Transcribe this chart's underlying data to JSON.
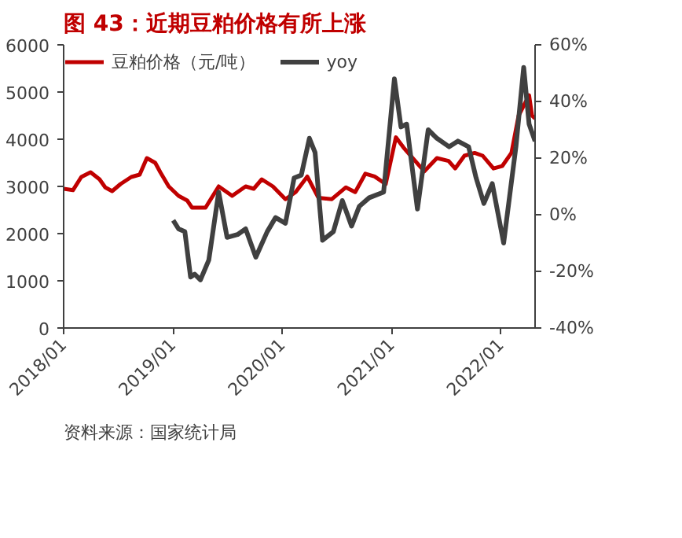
{
  "chart_data": {
    "type": "line",
    "title": "图 43：近期豆粕价格有所上涨",
    "annotations": [
      "资料来源：国家统计局"
    ],
    "xlim": [
      "2018-01-01",
      "2022-04-25"
    ],
    "xticks": [
      {
        "value": "2018-01-01",
        "label": "2018/01"
      },
      {
        "value": "2019-01-01",
        "label": "2019/01"
      },
      {
        "value": "2020-01-01",
        "label": "2020/01"
      },
      {
        "value": "2021-01-01",
        "label": "2021/01"
      },
      {
        "value": "2022-01-01",
        "label": "2022/01"
      }
    ],
    "ylim": [
      0,
      6000
    ],
    "yticks": [
      0,
      1000,
      2000,
      3000,
      4000,
      5000,
      6000
    ],
    "y2lim": [
      -40,
      60
    ],
    "y2ticks": [
      {
        "value": -40,
        "label": "-40%"
      },
      {
        "value": -20,
        "label": "-20%"
      },
      {
        "value": 0,
        "label": "0%"
      },
      {
        "value": 20,
        "label": "20%"
      },
      {
        "value": 40,
        "label": "40%"
      },
      {
        "value": 60,
        "label": "60%"
      }
    ],
    "grid": false,
    "legend": "top",
    "marker": "none",
    "line_style": "solid",
    "series": [
      {
        "name": "豆粕价格（元/吨）",
        "color": "#c00000",
        "x": [
          "2018-01-01",
          "2018-02-01",
          "2018-03-01",
          "2018-04-01",
          "2018-05-01",
          "2018-05-20",
          "2018-06-12",
          "2018-07-10",
          "2018-08-15",
          "2018-09-12",
          "2018-10-06",
          "2018-11-03",
          "2018-11-20",
          "2018-12-18",
          "2019-01-20",
          "2019-02-18",
          "2019-03-06",
          "2019-04-20",
          "2019-06-03",
          "2019-07-18",
          "2019-09-01",
          "2019-09-28",
          "2019-10-25",
          "2019-12-01",
          "2020-01-12",
          "2020-02-15",
          "2020-03-25",
          "2020-05-01",
          "2020-06-15",
          "2020-08-01",
          "2020-09-01",
          "2020-10-05",
          "2020-11-05",
          "2020-12-12",
          "2021-01-15",
          "2021-02-10",
          "2021-04-20",
          "2021-06-01",
          "2021-07-10",
          "2021-08-01",
          "2021-09-01",
          "2021-10-05",
          "2021-11-01",
          "2021-12-07",
          "2022-01-05",
          "2022-02-05",
          "2022-03-01",
          "2022-04-05",
          "2022-04-15",
          "2022-04-25"
        ],
        "values": [
          2950,
          2920,
          3200,
          3300,
          3150,
          2980,
          2900,
          3050,
          3200,
          3250,
          3600,
          3500,
          3300,
          3000,
          2800,
          2700,
          2550,
          2550,
          3000,
          2800,
          3000,
          2950,
          3150,
          3000,
          2730,
          2880,
          3210,
          2760,
          2730,
          2980,
          2880,
          3270,
          3210,
          3050,
          4040,
          3820,
          3320,
          3600,
          3540,
          3380,
          3650,
          3710,
          3650,
          3380,
          3430,
          3710,
          4500,
          4930,
          4500,
          4440
        ]
      },
      {
        "name": "yoy",
        "color": "#404040",
        "axis": "y2",
        "x": [
          "2019-01-02",
          "2019-01-20",
          "2019-02-10",
          "2019-03-01",
          "2019-03-15",
          "2019-04-03",
          "2019-05-01",
          "2019-06-03",
          "2019-07-01",
          "2019-08-05",
          "2019-09-01",
          "2019-10-05",
          "2019-11-12",
          "2019-12-10",
          "2020-01-12",
          "2020-02-10",
          "2020-03-05",
          "2020-04-01",
          "2020-04-20",
          "2020-05-15",
          "2020-06-20",
          "2020-07-20",
          "2020-08-20",
          "2020-09-15",
          "2020-10-18",
          "2020-12-05",
          "2021-01-10",
          "2021-02-01",
          "2021-02-20",
          "2021-03-28",
          "2021-05-03",
          "2021-06-01",
          "2021-07-12",
          "2021-08-10",
          "2021-09-15",
          "2021-10-10",
          "2021-11-05",
          "2021-12-03",
          "2022-01-10",
          "2022-02-20",
          "2022-03-18",
          "2022-04-05",
          "2022-04-25"
        ],
        "values": [
          -2,
          -5,
          -6,
          -22,
          -21,
          -23,
          -16,
          8,
          -8,
          -7,
          -5,
          -15,
          -6,
          -1,
          -3,
          13,
          14,
          27,
          22,
          -9,
          -6,
          5,
          -4,
          3,
          6,
          8,
          48,
          31,
          32,
          2,
          30,
          27,
          24,
          26,
          24,
          13,
          4,
          11,
          -10,
          24,
          52,
          32,
          26
        ]
      }
    ]
  }
}
